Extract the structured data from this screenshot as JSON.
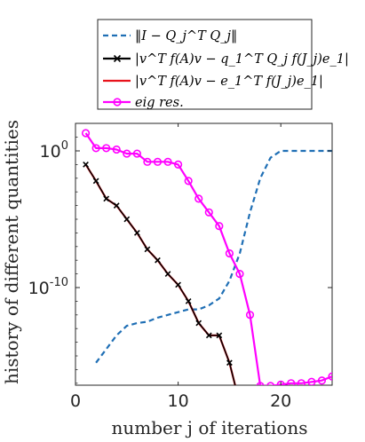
{
  "chart_data": {
    "type": "line",
    "xlabel": "number j of iterations",
    "ylabel": "history of different quantities",
    "xlim": [
      0,
      25
    ],
    "ylim_log10": [
      -17,
      1.5
    ],
    "yscale": "log",
    "xticks": [
      "0",
      "10",
      "20"
    ],
    "xtick_values": [
      0,
      10,
      20
    ],
    "yticks": [
      {
        "base": "10",
        "exp": "0",
        "value": 0
      },
      {
        "base": "10",
        "exp": "-10",
        "value": -10
      }
    ],
    "grid": false,
    "legend_position": "top",
    "series": [
      {
        "name": "‖I − Q_j^T Q_j‖",
        "color": "#1f6fb5",
        "style": "dashed",
        "marker": "none",
        "x": [
          2,
          3,
          4,
          5,
          6,
          7,
          8,
          9,
          10,
          11,
          12,
          13,
          14,
          15,
          16,
          17,
          18,
          19,
          20,
          21,
          22,
          23,
          24,
          25
        ],
        "log10_y": [
          -15.5,
          -14.5,
          -13.5,
          -12.8,
          -12.6,
          -12.5,
          -12.2,
          -12.0,
          -11.8,
          -11.6,
          -11.6,
          -11.3,
          -10.8,
          -9.5,
          -7.5,
          -4.5,
          -2.0,
          -0.5,
          0,
          0,
          0,
          0,
          0,
          0
        ]
      },
      {
        "name": "|v^T f(A)v − q_1^T Q_j f(J_j)e_1|",
        "color": "#000000",
        "style": "solid",
        "marker": "x",
        "x": [
          1,
          2,
          3,
          4,
          5,
          6,
          7,
          8,
          9,
          10,
          11,
          12,
          13,
          14,
          15,
          16,
          17,
          18,
          19,
          20,
          21,
          22,
          23,
          24,
          25
        ],
        "log10_y": [
          -1.0,
          -2.2,
          -3.5,
          -4.0,
          -5.0,
          -6.0,
          -7.2,
          -8.0,
          -9.0,
          -9.8,
          -11.0,
          -12.6,
          -13.5,
          -13.5,
          -15.5,
          -18.5,
          -20.0,
          -21.5,
          -20.5,
          -21.0,
          -20.0,
          -21.0,
          -20.8,
          -20.8,
          -20.8
        ]
      },
      {
        "name": "|v^T f(A)v − e_1^T f(J_j)e_1|",
        "color": "#e8121b",
        "style": "solid",
        "marker": "none",
        "x": [
          1,
          2,
          3,
          4,
          5,
          6,
          7,
          8,
          9,
          10,
          11,
          12,
          13,
          14,
          15,
          16,
          17,
          18,
          19,
          20,
          21,
          22,
          23,
          24,
          25
        ],
        "log10_y": [
          -1.0,
          -2.2,
          -3.5,
          -4.0,
          -5.0,
          -6.0,
          -7.2,
          -8.0,
          -9.0,
          -9.8,
          -11.0,
          -12.6,
          -13.5,
          -13.5,
          -15.5,
          -18.5,
          -20.0,
          -21.5,
          -20.5,
          -21.0,
          -20.0,
          -21.5,
          -21.0,
          -20.7,
          -20.8
        ]
      },
      {
        "name": "eig res.",
        "color": "#ff00ff",
        "style": "solid",
        "marker": "o",
        "x": [
          1,
          2,
          3,
          4,
          5,
          6,
          7,
          8,
          9,
          10,
          11,
          12,
          13,
          14,
          15,
          16,
          17,
          18,
          19,
          20,
          21,
          22,
          23,
          24,
          25
        ],
        "log10_y": [
          1.3,
          0.2,
          0.2,
          0.1,
          -0.2,
          -0.2,
          -0.8,
          -0.8,
          -0.8,
          -1.0,
          -2.2,
          -3.5,
          -4.5,
          -5.5,
          -7.5,
          -9.0,
          -12.0,
          -17.2,
          -17.2,
          -17.1,
          -17.0,
          -17.0,
          -16.9,
          -16.8,
          -16.5
        ]
      }
    ]
  }
}
